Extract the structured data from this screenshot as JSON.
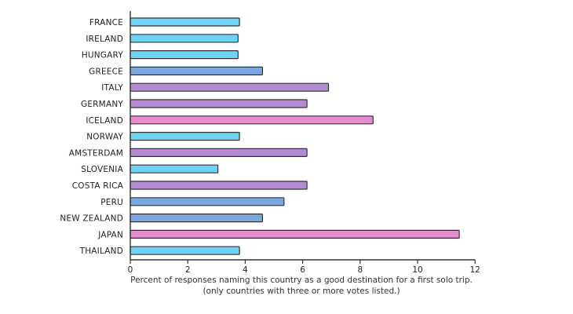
{
  "chart_data": {
    "type": "bar",
    "orientation": "horizontal",
    "categories": [
      "FRANCE",
      "IRELAND",
      "HUNGARY",
      "GREECE",
      "ITALY",
      "GERMANY",
      "ICELAND",
      "NORWAY",
      "AMSTERDAM",
      "SLOVENIA",
      "COSTA RICA",
      "PERU",
      "NEW ZEALAND",
      "JAPAN",
      "THAILAND"
    ],
    "values": [
      3.8,
      3.75,
      3.75,
      4.6,
      6.9,
      6.15,
      8.45,
      3.8,
      6.15,
      3.05,
      6.15,
      5.35,
      4.6,
      11.45,
      3.8
    ],
    "bar_colors": [
      "#6fd3f5",
      "#6fd3f5",
      "#6fd3f5",
      "#7aa7e0",
      "#b48ad3",
      "#b48ad3",
      "#e58ccf",
      "#6fd3f5",
      "#b48ad3",
      "#6fd3f5",
      "#b48ad3",
      "#7aa7e0",
      "#7aa7e0",
      "#e58ccf",
      "#6fd3f5"
    ],
    "xlabel_line1": "Percent of responses naming this country as a good destination for a first solo trip.",
    "xlabel_line2": "(only countries with three or more votes listed.)",
    "xticks": [
      0,
      2,
      4,
      6,
      8,
      10,
      12
    ],
    "xlim": [
      0,
      12
    ],
    "grid": false
  }
}
